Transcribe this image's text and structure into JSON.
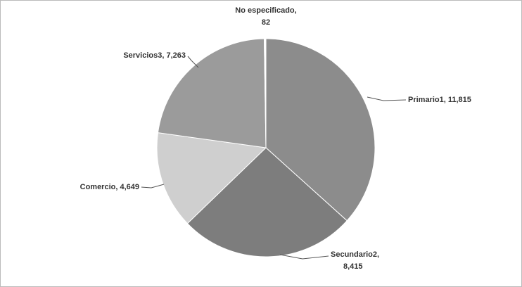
{
  "chart_data": {
    "type": "pie",
    "labels": [
      [
        "Primario1, 11,815"
      ],
      [
        "Secundario2,",
        "8,415"
      ],
      [
        "Comercio, 4,649"
      ],
      [
        "Servicios3, 7,263"
      ],
      [
        "No especificado,",
        "82"
      ]
    ],
    "values": [
      11815,
      8415,
      4649,
      7263,
      82
    ],
    "colors": [
      "#8c8c8c",
      "#7d7d7d",
      "#cfcfcf",
      "#9b9b9b",
      "#ffffff"
    ]
  }
}
